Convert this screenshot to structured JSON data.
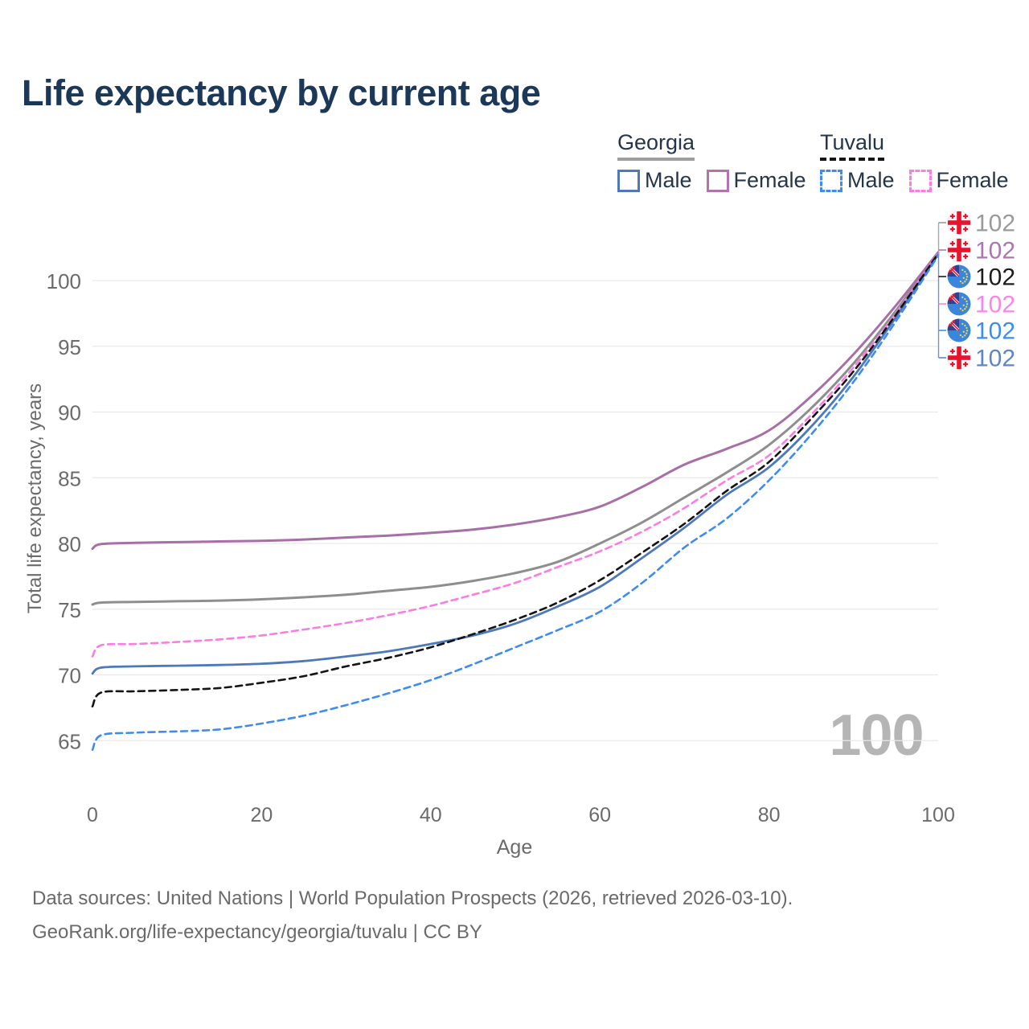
{
  "title": "Life expectancy by current age",
  "watermark": "100",
  "legend": {
    "groups": [
      {
        "label": "Georgia",
        "underline_color": "#9e9e9e",
        "underline_style": "solid",
        "items": [
          {
            "label": "Male",
            "color": "#4d79bb",
            "style": "solid"
          },
          {
            "label": "Female",
            "color": "#b273ae",
            "style": "solid"
          }
        ]
      },
      {
        "label": "Tuvalu",
        "underline_color": "#141414",
        "underline_style": "dashed",
        "items": [
          {
            "label": "Male",
            "color": "#3e8cf0",
            "style": "dashed"
          },
          {
            "label": "Female",
            "color": "#fb7ce3",
            "style": "dashed"
          }
        ]
      }
    ]
  },
  "footer": {
    "line1": "Data sources: United Nations | World Population Prospects (2026, retrieved 2026-03-10).",
    "line2": "GeoRank.org/life-expectancy/georgia/tuvalu | CC BY"
  },
  "chart_data": {
    "type": "line",
    "title": "Life expectancy by current age",
    "xlabel": "Age",
    "ylabel": "Total life expectancy, years",
    "x_ticks": [
      0,
      20,
      40,
      60,
      80,
      100
    ],
    "y_ticks": [
      65,
      70,
      75,
      80,
      85,
      90,
      95,
      100
    ],
    "xlim": [
      0,
      100
    ],
    "ylim": [
      63.5,
      102.5
    ],
    "grid": "horizontal",
    "legend_position": "top-right",
    "ages": [
      0,
      1,
      5,
      10,
      15,
      20,
      25,
      30,
      35,
      40,
      45,
      50,
      55,
      60,
      65,
      70,
      75,
      80,
      85,
      90,
      95,
      100
    ],
    "series": [
      {
        "name": "Georgia both sexes",
        "country": "Georgia",
        "sex": "All",
        "color": "#8e8e8e",
        "dash": "solid",
        "width": 3,
        "values": [
          75.35,
          75.5,
          75.55,
          75.6,
          75.65,
          75.75,
          75.9,
          76.1,
          76.4,
          76.7,
          77.15,
          77.75,
          78.6,
          80.0,
          81.6,
          83.5,
          85.4,
          87.5,
          90.3,
          93.7,
          97.7,
          102.1
        ]
      },
      {
        "name": "Georgia Female",
        "country": "Georgia",
        "sex": "Female",
        "color": "#a76fa6",
        "dash": "solid",
        "width": 3,
        "values": [
          79.6,
          79.95,
          80.05,
          80.1,
          80.15,
          80.2,
          80.3,
          80.45,
          80.6,
          80.8,
          81.05,
          81.45,
          82.0,
          82.8,
          84.3,
          86.0,
          87.2,
          88.6,
          91.2,
          94.4,
          98.1,
          102.15
        ]
      },
      {
        "name": "Tuvalu Female",
        "country": "Tuvalu",
        "sex": "Female",
        "color": "#fb7ce3",
        "dash": "dashed",
        "width": 2.6,
        "values": [
          71.4,
          72.25,
          72.35,
          72.5,
          72.7,
          73.0,
          73.45,
          73.95,
          74.55,
          75.25,
          76.1,
          77.0,
          78.2,
          79.4,
          80.9,
          82.7,
          84.8,
          86.7,
          89.8,
          93.4,
          97.5,
          102.1
        ]
      },
      {
        "name": "Georgia Male",
        "country": "Georgia",
        "sex": "Male",
        "color": "#4d79bb",
        "dash": "solid",
        "width": 2.8,
        "values": [
          70.1,
          70.55,
          70.65,
          70.7,
          70.75,
          70.85,
          71.05,
          71.4,
          71.8,
          72.35,
          73.0,
          73.9,
          75.2,
          76.7,
          78.9,
          81.2,
          83.7,
          85.8,
          88.9,
          92.7,
          97.2,
          102.0
        ]
      },
      {
        "name": "Tuvalu both sexes",
        "country": "Tuvalu",
        "sex": "All",
        "color": "#141414",
        "dash": "dashed",
        "width": 2.6,
        "values": [
          67.6,
          68.65,
          68.75,
          68.85,
          69.0,
          69.4,
          69.9,
          70.65,
          71.3,
          72.1,
          73.1,
          74.2,
          75.5,
          77.2,
          79.3,
          81.5,
          84.0,
          86.2,
          89.5,
          93.1,
          97.4,
          102.05
        ]
      },
      {
        "name": "Tuvalu Male",
        "country": "Tuvalu",
        "sex": "Male",
        "color": "#3e8cf0",
        "dash": "dashed",
        "width": 2.6,
        "values": [
          64.3,
          65.4,
          65.6,
          65.7,
          65.85,
          66.3,
          66.9,
          67.7,
          68.6,
          69.6,
          70.8,
          72.1,
          73.4,
          74.8,
          77.0,
          79.7,
          81.9,
          84.8,
          88.3,
          92.3,
          96.9,
          101.9
        ]
      }
    ],
    "end_labels": [
      {
        "label": "102",
        "flag": "georgia",
        "series": "Georgia both sexes",
        "color": "#9a9a9a"
      },
      {
        "label": "102",
        "flag": "georgia",
        "series": "Georgia Female",
        "color": "#ac77ae"
      },
      {
        "label": "102",
        "flag": "tuvalu",
        "series": "Tuvalu both sexes",
        "color": "#1c1c1c"
      },
      {
        "label": "102",
        "flag": "tuvalu",
        "series": "Tuvalu Female",
        "color": "#fc84e8"
      },
      {
        "label": "102",
        "flag": "tuvalu",
        "series": "Tuvalu Male",
        "color": "#3e8cf0"
      },
      {
        "label": "102",
        "flag": "georgia",
        "series": "Georgia Male",
        "color": "#5d85c8"
      }
    ]
  }
}
